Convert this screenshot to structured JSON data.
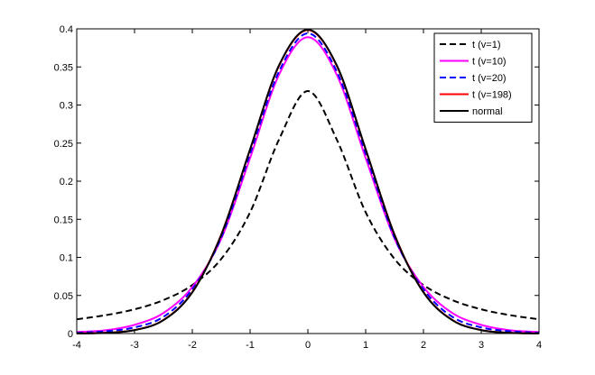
{
  "chart_data": {
    "type": "line",
    "title": "",
    "xlabel": "",
    "ylabel": "",
    "xlim": [
      -4,
      4
    ],
    "ylim": [
      0,
      0.4
    ],
    "xticks": [
      -4,
      -3,
      -2,
      -1,
      0,
      1,
      2,
      3,
      4
    ],
    "yticks": [
      0,
      0.05,
      0.1,
      0.15,
      0.2,
      0.25,
      0.3,
      0.35,
      0.4
    ],
    "xtick_labels": [
      "-4",
      "-3",
      "-2",
      "-1",
      "0",
      "1",
      "2",
      "3",
      "4"
    ],
    "ytick_labels": [
      "0",
      "0.05",
      "0.1",
      "0.15",
      "0.2",
      "0.25",
      "0.3",
      "0.35",
      "0.4"
    ],
    "grid": false,
    "legend_position": "top-right",
    "x": [
      -4,
      -3.5,
      -3,
      -2.5,
      -2,
      -1.5,
      -1,
      -0.5,
      0,
      0.5,
      1,
      1.5,
      2,
      2.5,
      3,
      3.5,
      4
    ],
    "series": [
      {
        "name": "t (v=1)",
        "color": "#000000",
        "style": "dashed",
        "values": [
          0.0187,
          0.0241,
          0.0318,
          0.0439,
          0.0637,
          0.0979,
          0.1592,
          0.2546,
          0.3183,
          0.2546,
          0.1592,
          0.0979,
          0.0637,
          0.0439,
          0.0318,
          0.0241,
          0.0187
        ]
      },
      {
        "name": "t (v=10)",
        "color": "#ff00ff",
        "style": "solid",
        "values": [
          0.002,
          0.0043,
          0.0114,
          0.0269,
          0.0611,
          0.1244,
          0.2304,
          0.3397,
          0.3891,
          0.3397,
          0.2304,
          0.1244,
          0.0611,
          0.0269,
          0.0114,
          0.0043,
          0.002
        ]
      },
      {
        "name": "t (v=20)",
        "color": "#0000ff",
        "style": "dashed",
        "values": [
          0.001,
          0.003,
          0.008,
          0.0219,
          0.0581,
          0.126,
          0.236,
          0.344,
          0.394,
          0.344,
          0.236,
          0.126,
          0.0581,
          0.0219,
          0.008,
          0.003,
          0.001
        ]
      },
      {
        "name": "t (v=198)",
        "color": "#ff0000",
        "style": "solid",
        "values": [
          0.0002,
          0.001,
          0.0046,
          0.0178,
          0.0545,
          0.1297,
          0.2415,
          0.3513,
          0.3984,
          0.3513,
          0.2415,
          0.1297,
          0.0545,
          0.0178,
          0.0046,
          0.001,
          0.0002
        ]
      },
      {
        "name": "normal",
        "color": "#000000",
        "style": "solid",
        "values": [
          0.0001,
          0.0009,
          0.0044,
          0.0175,
          0.054,
          0.1295,
          0.242,
          0.3521,
          0.3989,
          0.3521,
          0.242,
          0.1295,
          0.054,
          0.0175,
          0.0044,
          0.0009,
          0.0001
        ]
      }
    ]
  }
}
